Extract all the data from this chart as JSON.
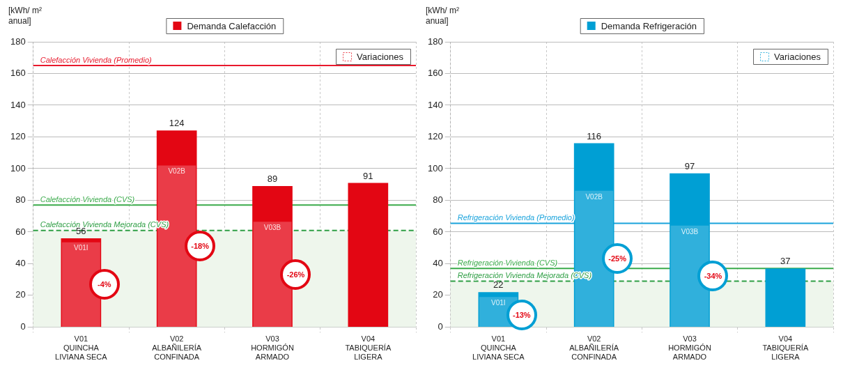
{
  "chart_data": [
    {
      "type": "bar",
      "ylabel": "[kWh/ m² anual]",
      "categories": [
        "V01\nQUINCHA\nLIVIANA SECA",
        "V02\nALBAÑILERÍA\nCONFINADA",
        "V03\nHORMIGÓN\nARMADO",
        "V04\nTABIQUERÍA\nLIGERA"
      ],
      "series": [
        {
          "name": "Demanda Calefacción",
          "color": "#e30613",
          "values": [
            56,
            124,
            89,
            91
          ],
          "value_labels": [
            "56",
            "124",
            "89",
            "91"
          ]
        },
        {
          "name": "Variaciones",
          "color": "#ea3c48",
          "values": [
            53.5,
            102,
            66.5,
            null
          ],
          "value_labels": [
            "V01I",
            "V02B",
            "V03B",
            null
          ]
        }
      ],
      "ylim": [
        0,
        180
      ],
      "yticks": [
        0,
        20,
        40,
        60,
        80,
        100,
        120,
        140,
        160,
        180
      ],
      "grid": true,
      "legend": "top",
      "ref_lines": [
        {
          "axis": "y",
          "value": 165,
          "label": "Calefacción Vivienda (Promedio)",
          "color": "#e8192c",
          "line_style": "solid"
        },
        {
          "axis": "y",
          "value": 77,
          "label": "Calefacción Vivienda (CVS)",
          "color": "#3aaa4a",
          "line_style": "solid"
        },
        {
          "axis": "y",
          "value": 61,
          "label": "Calefacción Vivienda Mejorada (CVS)",
          "color": "#2e9e44",
          "line_style": "dashed"
        }
      ],
      "bands": [
        {
          "axis": "y",
          "from": 0,
          "to": 61,
          "color": "#eef6ec"
        }
      ],
      "annotations": [
        "-4%",
        "-18%",
        "-26%"
      ]
    },
    {
      "type": "bar",
      "ylabel": "[kWh/ m² anual]",
      "categories": [
        "V01\nQUINCHA\nLIVIANA SECA",
        "V02\nALBAÑILERÍA\nCONFINADA",
        "V03\nHORMIGÓN\nARMADO",
        "V04\nTABIQUERÍA\nLIGERA"
      ],
      "series": [
        {
          "name": "Demanda Refrigeración",
          "color": "#009fd4",
          "values": [
            22,
            116,
            97,
            37
          ],
          "value_labels": [
            "22",
            "116",
            "97",
            "37"
          ]
        },
        {
          "name": "Variaciones",
          "color": "#30b0dc",
          "values": [
            19,
            86,
            64,
            null
          ],
          "value_labels": [
            "V01I",
            "V02B",
            "V03B",
            null
          ]
        }
      ],
      "ylim": [
        0,
        180
      ],
      "yticks": [
        0,
        20,
        40,
        60,
        80,
        100,
        120,
        140,
        160,
        180
      ],
      "grid": true,
      "legend": "top",
      "ref_lines": [
        {
          "axis": "y",
          "value": 65.5,
          "label": "Refrigeración Vivienda (Promedio)",
          "color": "#1aa3dc",
          "line_style": "solid"
        },
        {
          "axis": "y",
          "value": 37,
          "label": "Refrigeración Vivienda (CVS)",
          "color": "#3aaa4a",
          "line_style": "solid"
        },
        {
          "axis": "y",
          "value": 29,
          "label": "Refrigeración Vivienda Mejorada (CVS)",
          "color": "#2e9e44",
          "line_style": "dashed"
        }
      ],
      "bands": [
        {
          "axis": "y",
          "from": 0,
          "to": 29,
          "color": "#eef6ec"
        }
      ],
      "annotations": [
        "-13%",
        "-25%",
        "-34%"
      ]
    }
  ]
}
